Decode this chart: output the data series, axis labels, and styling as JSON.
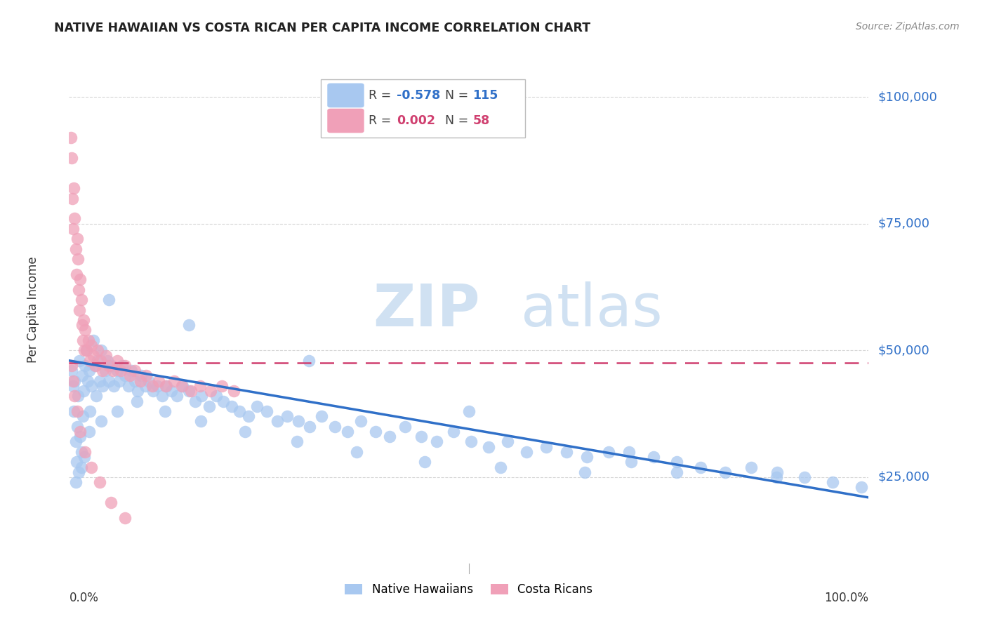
{
  "title": "NATIVE HAWAIIAN VS COSTA RICAN PER CAPITA INCOME CORRELATION CHART",
  "source": "Source: ZipAtlas.com",
  "ylabel": "Per Capita Income",
  "xlim": [
    0,
    1
  ],
  "ylim": [
    8000,
    108000
  ],
  "blue_color": "#A8C8F0",
  "pink_color": "#F0A0B8",
  "blue_line_color": "#3070C8",
  "pink_line_color": "#D04070",
  "grid_color": "#CCCCCC",
  "watermark_zip": "ZIP",
  "watermark_atlas": "atlas",
  "background_color": "#FFFFFF",
  "blue_trend_x0": 0.0,
  "blue_trend_y0": 48000,
  "blue_trend_x1": 1.0,
  "blue_trend_y1": 21000,
  "pink_trend_y": 47500,
  "native_hawaiian_x": [
    0.003,
    0.005,
    0.006,
    0.007,
    0.008,
    0.009,
    0.01,
    0.011,
    0.012,
    0.013,
    0.014,
    0.015,
    0.016,
    0.017,
    0.018,
    0.019,
    0.02,
    0.022,
    0.023,
    0.025,
    0.026,
    0.028,
    0.03,
    0.032,
    0.034,
    0.036,
    0.038,
    0.04,
    0.042,
    0.045,
    0.048,
    0.05,
    0.053,
    0.056,
    0.06,
    0.063,
    0.066,
    0.07,
    0.074,
    0.078,
    0.082,
    0.086,
    0.09,
    0.095,
    0.1,
    0.105,
    0.11,
    0.116,
    0.122,
    0.128,
    0.135,
    0.142,
    0.15,
    0.158,
    0.166,
    0.175,
    0.184,
    0.193,
    0.203,
    0.213,
    0.224,
    0.235,
    0.247,
    0.26,
    0.273,
    0.287,
    0.301,
    0.316,
    0.332,
    0.348,
    0.365,
    0.383,
    0.401,
    0.42,
    0.44,
    0.46,
    0.481,
    0.503,
    0.525,
    0.548,
    0.572,
    0.597,
    0.622,
    0.648,
    0.675,
    0.703,
    0.731,
    0.76,
    0.79,
    0.821,
    0.853,
    0.886,
    0.92,
    0.955,
    0.991,
    0.008,
    0.015,
    0.025,
    0.04,
    0.06,
    0.085,
    0.12,
    0.165,
    0.22,
    0.285,
    0.36,
    0.445,
    0.54,
    0.645,
    0.76,
    0.885,
    0.05,
    0.15,
    0.3,
    0.5,
    0.7
  ],
  "native_hawaiian_y": [
    46000,
    43000,
    38000,
    44000,
    32000,
    28000,
    35000,
    41000,
    26000,
    48000,
    33000,
    30000,
    45000,
    37000,
    42000,
    29000,
    47000,
    50000,
    44000,
    46000,
    38000,
    43000,
    52000,
    47000,
    41000,
    48000,
    44000,
    50000,
    43000,
    46000,
    48000,
    44000,
    47000,
    43000,
    46000,
    44000,
    47000,
    45000,
    43000,
    46000,
    44000,
    42000,
    45000,
    43000,
    44000,
    42000,
    43000,
    41000,
    43000,
    42000,
    41000,
    43000,
    42000,
    40000,
    41000,
    39000,
    41000,
    40000,
    39000,
    38000,
    37000,
    39000,
    38000,
    36000,
    37000,
    36000,
    35000,
    37000,
    35000,
    34000,
    36000,
    34000,
    33000,
    35000,
    33000,
    32000,
    34000,
    32000,
    31000,
    32000,
    30000,
    31000,
    30000,
    29000,
    30000,
    28000,
    29000,
    28000,
    27000,
    26000,
    27000,
    26000,
    25000,
    24000,
    23000,
    24000,
    27000,
    34000,
    36000,
    38000,
    40000,
    38000,
    36000,
    34000,
    32000,
    30000,
    28000,
    27000,
    26000,
    26000,
    25000,
    60000,
    55000,
    48000,
    38000,
    30000
  ],
  "costa_rican_x": [
    0.002,
    0.003,
    0.004,
    0.005,
    0.006,
    0.007,
    0.008,
    0.009,
    0.01,
    0.011,
    0.012,
    0.013,
    0.014,
    0.015,
    0.016,
    0.017,
    0.018,
    0.019,
    0.02,
    0.022,
    0.024,
    0.026,
    0.028,
    0.03,
    0.033,
    0.036,
    0.039,
    0.042,
    0.046,
    0.05,
    0.055,
    0.06,
    0.065,
    0.07,
    0.076,
    0.082,
    0.089,
    0.096,
    0.104,
    0.112,
    0.121,
    0.131,
    0.141,
    0.152,
    0.164,
    0.177,
    0.191,
    0.206,
    0.003,
    0.005,
    0.007,
    0.01,
    0.014,
    0.02,
    0.028,
    0.038,
    0.052,
    0.07
  ],
  "costa_rican_y": [
    92000,
    88000,
    80000,
    74000,
    82000,
    76000,
    70000,
    65000,
    72000,
    68000,
    62000,
    58000,
    64000,
    60000,
    55000,
    52000,
    56000,
    50000,
    54000,
    50000,
    52000,
    48000,
    51000,
    49000,
    47000,
    50000,
    48000,
    46000,
    49000,
    47000,
    46000,
    48000,
    46000,
    47000,
    45000,
    46000,
    44000,
    45000,
    43000,
    44000,
    43000,
    44000,
    43000,
    42000,
    43000,
    42000,
    43000,
    42000,
    47000,
    44000,
    41000,
    38000,
    34000,
    30000,
    27000,
    24000,
    20000,
    17000
  ]
}
